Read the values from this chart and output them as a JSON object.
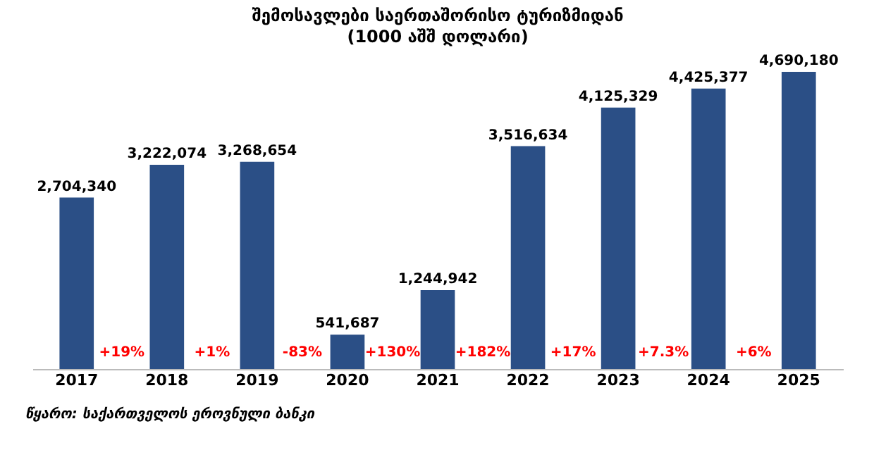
{
  "chart_data": {
    "type": "bar",
    "title": "შემოსავლები საერთაშორისო ტურიზმიდან",
    "subtitle": "(1000 აშშ დოლარი)",
    "categories": [
      "2017",
      "2018",
      "2019",
      "2020",
      "2021",
      "2022",
      "2023",
      "2024",
      "2025"
    ],
    "values": [
      2704340,
      3222074,
      3268654,
      541687,
      1244942,
      3516634,
      4125329,
      4425377,
      4690180
    ],
    "value_labels": [
      "2,704,340",
      "3,222,074",
      "3,268,654",
      "541,687",
      "1,244,942",
      "3,516,634",
      "4,125,329",
      "4,425,377",
      "4,690,180"
    ],
    "color": "#2b4f86",
    "grid": false,
    "tick_labels": "x",
    "annotations": [
      "+19%",
      "+1%",
      "-83%",
      "+130%",
      "+182%",
      "+17%",
      "+7.3%",
      "+6%",
      "წყარო: საქართველოს ეროვნული ბანკი"
    ]
  }
}
